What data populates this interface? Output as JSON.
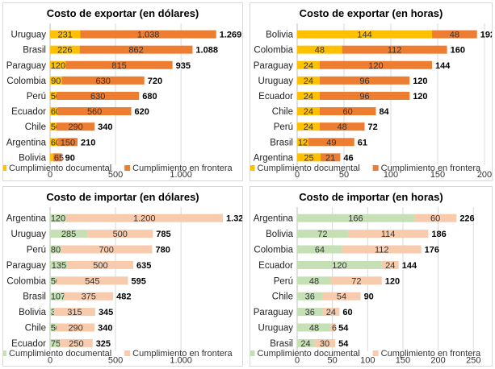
{
  "chart_data": [
    {
      "type": "bar",
      "orientation": "horizontal",
      "stacked": true,
      "title": "Costo de exportar (en dólares)",
      "categories": [
        "Uruguay",
        "Brasil",
        "Paraguay",
        "Colombia",
        "Perú",
        "Ecuador",
        "Chile",
        "Argentina",
        "Bolivia"
      ],
      "series": [
        {
          "name": "Cumplimiento documental",
          "color": "#FFC000",
          "values": [
            231,
            226,
            120,
            90,
            50,
            60,
            50,
            60,
            25
          ],
          "labels": [
            "231",
            "226",
            "120",
            "90",
            "50",
            "60",
            "50",
            "60",
            ""
          ]
        },
        {
          "name": "Cumplimiento en frontera",
          "color": "#ED7D31",
          "values": [
            1038,
            862,
            815,
            630,
            630,
            560,
            290,
            150,
            65
          ],
          "labels": [
            "1.038",
            "862",
            "815",
            "630",
            "630",
            "560",
            "290",
            "150",
            "65"
          ]
        }
      ],
      "totals": [
        "1.269",
        "1.088",
        "935",
        "720",
        "680",
        "620",
        "340",
        "210",
        "90"
      ],
      "xlim": [
        0,
        1400
      ],
      "xticks": [
        0,
        500,
        1000
      ],
      "xtick_labels": [
        "0",
        "500",
        "1.000"
      ],
      "grid": true,
      "legend": "bottom"
    },
    {
      "type": "bar",
      "orientation": "horizontal",
      "stacked": true,
      "title": "Costo de exportar (en horas)",
      "categories": [
        "Bolivia",
        "Colombia",
        "Paraguay",
        "Uruguay",
        "Ecuador",
        "Chile",
        "Perú",
        "Brasil",
        "Argentina"
      ],
      "series": [
        {
          "name": "Cumplimiento documental",
          "color": "#FFC000",
          "values": [
            144,
            48,
            24,
            24,
            24,
            24,
            24,
            12,
            25
          ],
          "labels": [
            "144",
            "48",
            "24",
            "24",
            "24",
            "24",
            "24",
            "12",
            "25"
          ]
        },
        {
          "name": "Cumplimiento en frontera",
          "color": "#ED7D31",
          "values": [
            48,
            112,
            120,
            96,
            96,
            60,
            48,
            49,
            21
          ],
          "labels": [
            "48",
            "112",
            "120",
            "96",
            "96",
            "60",
            "48",
            "49",
            "21"
          ]
        }
      ],
      "totals": [
        "192",
        "160",
        "144",
        "120",
        "120",
        "84",
        "72",
        "61",
        "46"
      ],
      "xlim": [
        0,
        200
      ],
      "xticks": [
        0,
        50,
        100,
        150,
        200
      ],
      "xtick_labels": [
        "0",
        "50",
        "100",
        "150",
        "200"
      ],
      "grid": true,
      "legend": "bottom"
    },
    {
      "type": "bar",
      "orientation": "horizontal",
      "stacked": true,
      "title": "Costo de importar (en dólares)",
      "categories": [
        "Argentina",
        "Uruguay",
        "Perú",
        "Paraguay",
        "Colombia",
        "Brasil",
        "Bolivia",
        "Chile",
        "Ecuador"
      ],
      "series": [
        {
          "name": "Cumplimiento documental",
          "color": "#C5E0B4",
          "values": [
            120,
            285,
            80,
            135,
            50,
            107,
            30,
            50,
            75
          ],
          "labels": [
            "120",
            "285",
            "80",
            "135",
            "50",
            "107",
            "30",
            "50",
            "75"
          ]
        },
        {
          "name": "Cumplimiento en frontera",
          "color": "#F8CBAD",
          "values": [
            1200,
            500,
            700,
            500,
            545,
            375,
            315,
            290,
            250
          ],
          "labels": [
            "1.200",
            "500",
            "700",
            "500",
            "545",
            "375",
            "315",
            "290",
            "250"
          ]
        }
      ],
      "totals": [
        "1.320",
        "785",
        "780",
        "635",
        "595",
        "482",
        "345",
        "340",
        "325"
      ],
      "xlim": [
        0,
        1400
      ],
      "xticks": [
        0,
        500,
        1000
      ],
      "xtick_labels": [
        "0",
        "500",
        "1.000"
      ],
      "grid": true,
      "legend": "bottom"
    },
    {
      "type": "bar",
      "orientation": "horizontal",
      "stacked": true,
      "title": "Costo de importar (en horas)",
      "categories": [
        "Argentina",
        "Bolivia",
        "Colombia",
        "Ecuador",
        "Perú",
        "Chile",
        "Paraguay",
        "Uruguay",
        "Brasil"
      ],
      "series": [
        {
          "name": "Cumplimiento documental",
          "color": "#C5E0B4",
          "values": [
            166,
            72,
            64,
            120,
            48,
            36,
            36,
            48,
            24
          ],
          "labels": [
            "166",
            "72",
            "64",
            "120",
            "48",
            "36",
            "36",
            "48",
            "24"
          ]
        },
        {
          "name": "Cumplimiento en frontera",
          "color": "#F8CBAD",
          "values": [
            60,
            114,
            112,
            24,
            72,
            54,
            24,
            6,
            30
          ],
          "labels": [
            "60",
            "114",
            "112",
            "24",
            "72",
            "54",
            "24",
            "6",
            "30"
          ]
        }
      ],
      "totals": [
        "226",
        "186",
        "176",
        "144",
        "120",
        "90",
        "60",
        "54",
        "54"
      ],
      "xlim": [
        0,
        260
      ],
      "xticks": [
        0,
        50,
        100,
        150,
        200,
        250
      ],
      "xtick_labels": [
        "0",
        "50",
        "100",
        "150",
        "200",
        "250"
      ],
      "grid": true,
      "legend": "bottom"
    }
  ]
}
